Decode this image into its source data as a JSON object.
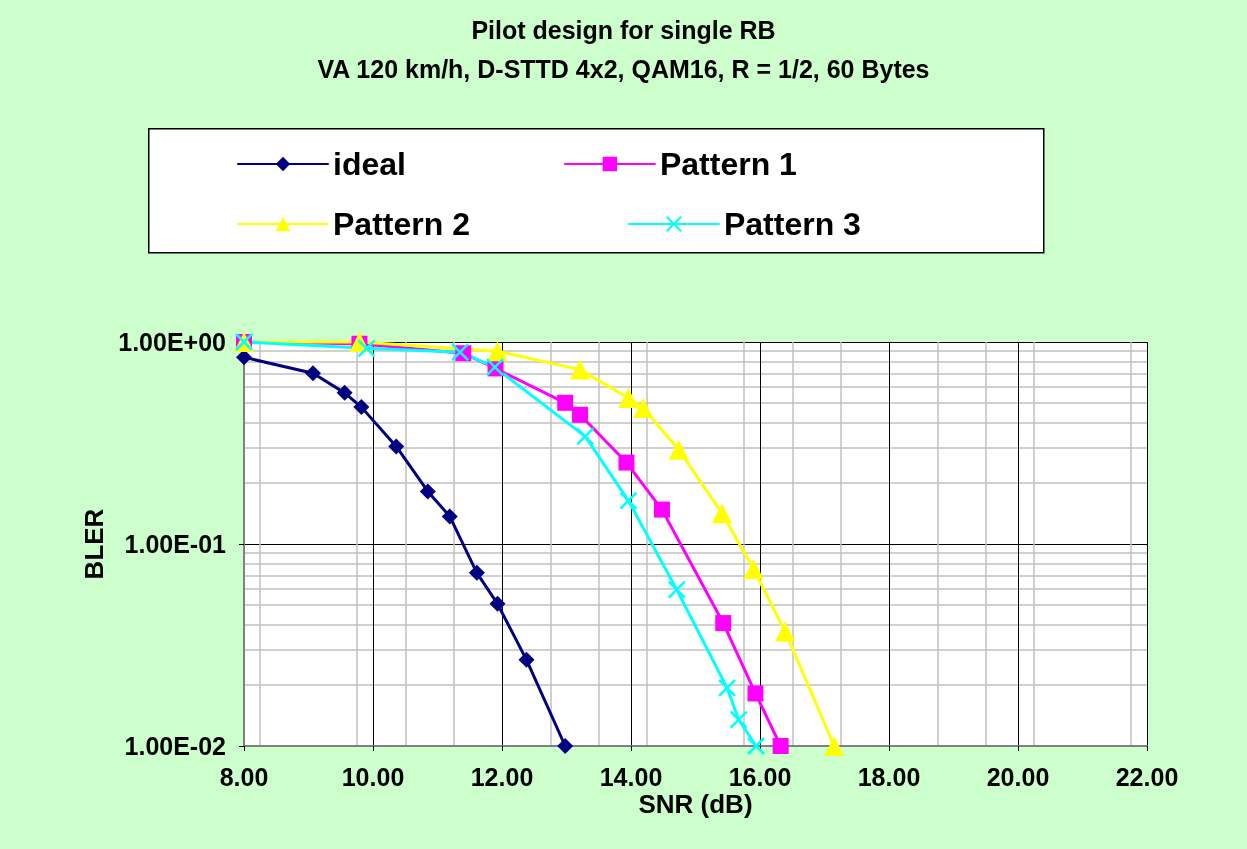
{
  "chart_data": {
    "type": "line",
    "title": "Pilot design for single RB",
    "subtitle": "VA 120 km/h, D-STTD 4x2, QAM16, R = 1/2, 60 Bytes",
    "xlabel": "SNR (dB)",
    "ylabel": "BLER",
    "log": "y",
    "grid": true,
    "legend": "top",
    "xlim": [
      8,
      22
    ],
    "xticks": [
      {
        "value": 8,
        "label": "8.00"
      },
      {
        "value": 10,
        "label": "10.00"
      },
      {
        "value": 12,
        "label": "12.00"
      },
      {
        "value": 14,
        "label": "14.00"
      },
      {
        "value": 16,
        "label": "16.00"
      },
      {
        "value": 18,
        "label": "18.00"
      },
      {
        "value": 20,
        "label": "20.00"
      },
      {
        "value": 22,
        "label": "22.00"
      }
    ],
    "ylim": [
      0.01,
      1
    ],
    "yticks": [
      {
        "value": 0.01,
        "label": "1.00E-02"
      },
      {
        "value": 0.1,
        "label": "1.00E-01"
      },
      {
        "value": 1,
        "label": "1.00E+00"
      }
    ],
    "series": [
      {
        "name": "ideal",
        "color": "#000080",
        "marker": "diamond",
        "x": [
          8,
          9.07,
          9.56,
          9.82,
          10.36,
          10.85,
          11.19,
          11.61,
          11.93,
          12.38,
          12.98
        ],
        "values": [
          0.84,
          0.7,
          0.56,
          0.476,
          0.304,
          0.182,
          0.137,
          0.072,
          0.0506,
          0.0267,
          0.01
        ]
      },
      {
        "name": "Pattern 1",
        "color": "#ff00ff",
        "marker": "square",
        "x": [
          8,
          9.79,
          11.4,
          11.9,
          12.98,
          13.21,
          13.93,
          14.48,
          15.43,
          15.93,
          16.32
        ],
        "values": [
          1,
          0.98,
          0.88,
          0.74,
          0.5,
          0.436,
          0.253,
          0.148,
          0.0406,
          0.0182,
          0.01
        ]
      },
      {
        "name": "Pattern 2",
        "color": "#ffff00",
        "marker": "triangle",
        "x": [
          8,
          9.79,
          11.93,
          13.21,
          13.96,
          14.19,
          14.74,
          15.41,
          15.9,
          16.39,
          17.15
        ],
        "values": [
          1,
          1,
          0.9,
          0.73,
          0.528,
          0.471,
          0.293,
          0.142,
          0.0752,
          0.0369,
          0.01
        ]
      },
      {
        "name": "Pattern 3",
        "color": "#00ffff",
        "marker": "cross",
        "x": [
          8,
          9.9,
          11.35,
          11.89,
          13.29,
          13.96,
          14.71,
          15.49,
          15.67,
          15.94
        ],
        "values": [
          1,
          0.93,
          0.89,
          0.75,
          0.341,
          0.164,
          0.0594,
          0.0194,
          0.0135,
          0.01
        ]
      }
    ]
  }
}
